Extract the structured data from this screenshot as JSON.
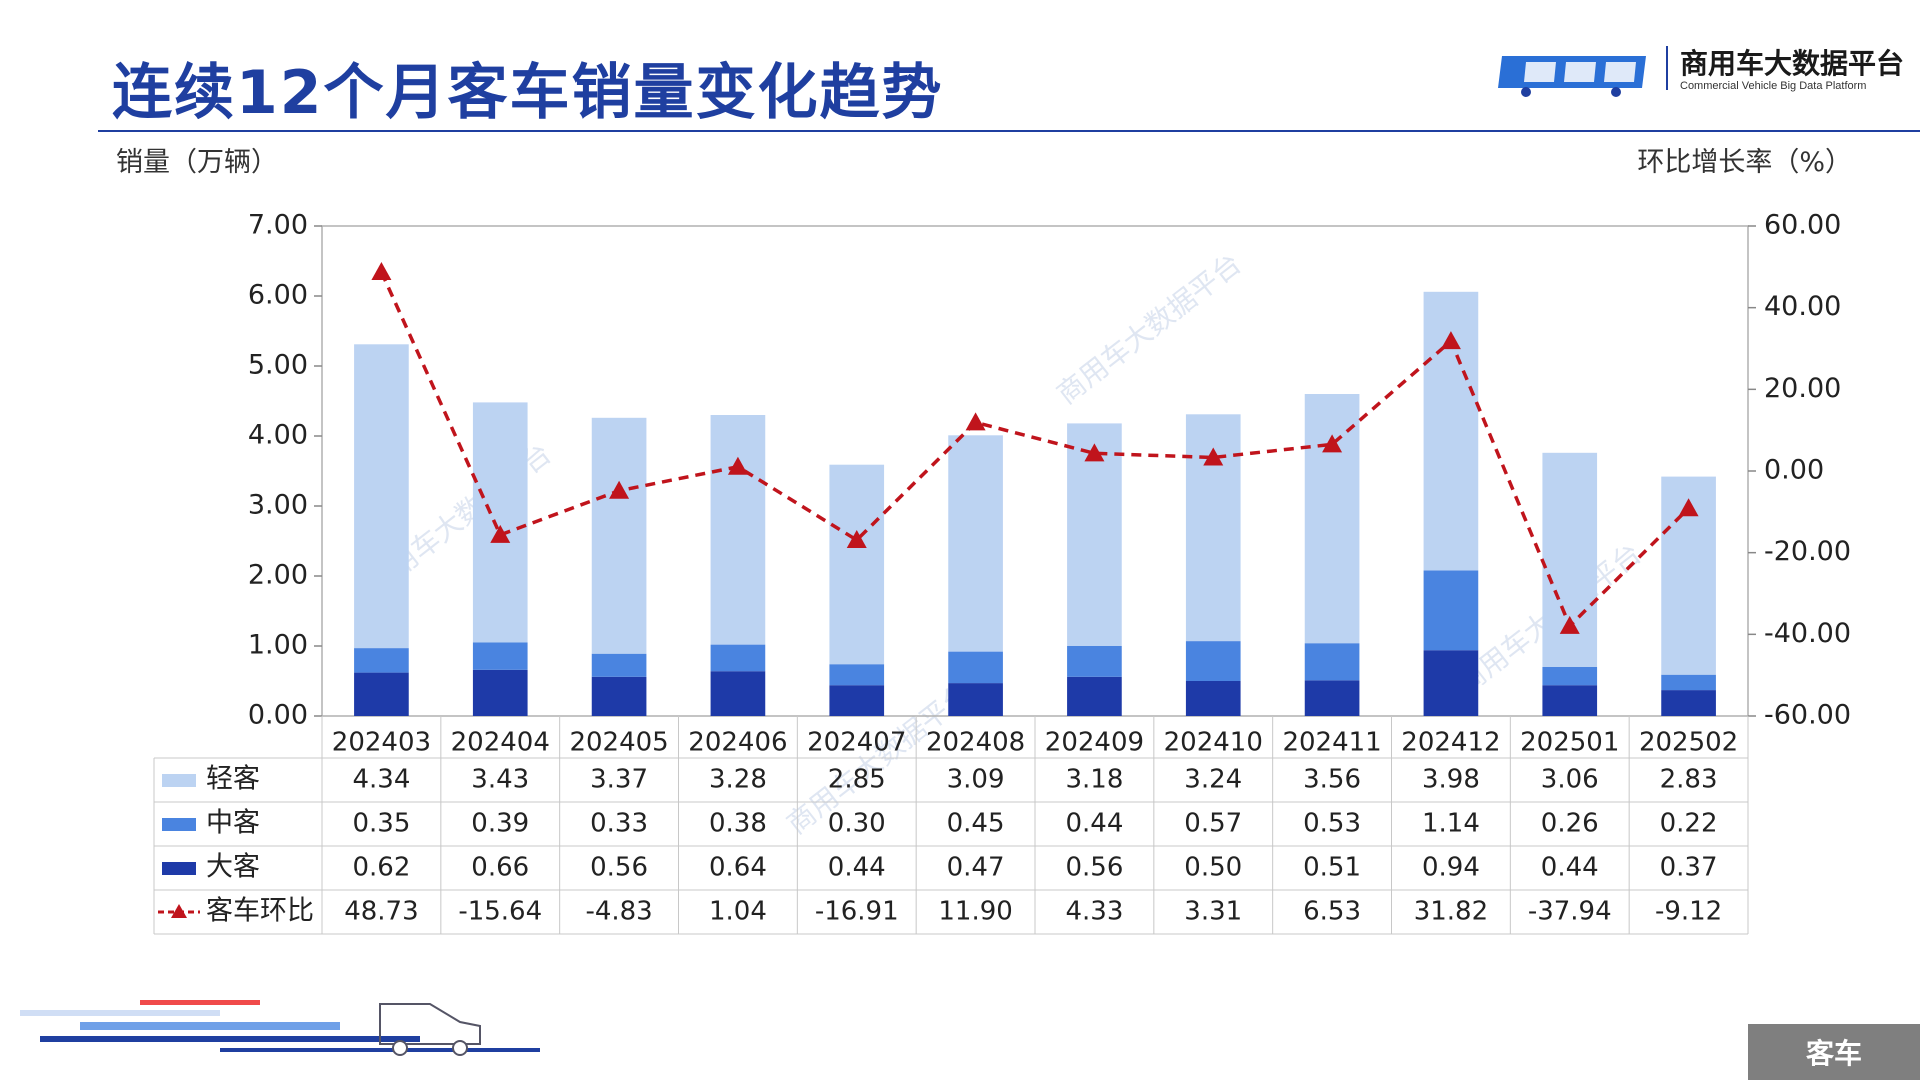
{
  "page": {
    "title": "连续12个月客车销量变化趋势",
    "badge": "客车",
    "logo_cn": "商用车大数据平台",
    "logo_en": "Commercial Vehicle Big Data Platform",
    "watermark_text": "商用车大数据平台"
  },
  "chart_data": {
    "type": "bar",
    "stacked": true,
    "categories": [
      "202403",
      "202404",
      "202405",
      "202406",
      "202407",
      "202408",
      "202409",
      "202410",
      "202411",
      "202412",
      "202501",
      "202502"
    ],
    "ylabel": "销量（万辆）",
    "y2label": "环比增长率（%）",
    "ylim": [
      0,
      7
    ],
    "y2lim": [
      -60,
      60
    ],
    "yticks": [
      "0.00",
      "1.00",
      "2.00",
      "3.00",
      "4.00",
      "5.00",
      "6.00",
      "7.00"
    ],
    "y2ticks": [
      "-60.00",
      "-40.00",
      "-20.00",
      "0.00",
      "20.00",
      "40.00",
      "60.00"
    ],
    "series": [
      {
        "name": "大客",
        "type": "bar",
        "color": "#1e3aa8",
        "values": [
          0.62,
          0.66,
          0.56,
          0.64,
          0.44,
          0.47,
          0.56,
          0.5,
          0.51,
          0.94,
          0.44,
          0.37
        ],
        "labels": [
          "0.62",
          "0.66",
          "0.56",
          "0.64",
          "0.44",
          "0.47",
          "0.56",
          "0.50",
          "0.51",
          "0.94",
          "0.44",
          "0.37"
        ]
      },
      {
        "name": "中客",
        "type": "bar",
        "color": "#4a84e0",
        "values": [
          0.35,
          0.39,
          0.33,
          0.38,
          0.3,
          0.45,
          0.44,
          0.57,
          0.53,
          1.14,
          0.26,
          0.22
        ],
        "labels": [
          "0.35",
          "0.39",
          "0.33",
          "0.38",
          "0.30",
          "0.45",
          "0.44",
          "0.57",
          "0.53",
          "1.14",
          "0.26",
          "0.22"
        ]
      },
      {
        "name": "轻客",
        "type": "bar",
        "color": "#bcd3f2",
        "values": [
          4.34,
          3.43,
          3.37,
          3.28,
          2.85,
          3.09,
          3.18,
          3.24,
          3.56,
          3.98,
          3.06,
          2.83
        ],
        "labels": [
          "4.34",
          "3.43",
          "3.37",
          "3.28",
          "2.85",
          "3.09",
          "3.18",
          "3.24",
          "3.56",
          "3.98",
          "3.06",
          "2.83"
        ]
      },
      {
        "name": "客车环比",
        "type": "line",
        "axis": "right",
        "color": "#c0141c",
        "values": [
          48.73,
          -15.64,
          -4.83,
          1.04,
          -16.91,
          11.9,
          4.33,
          3.31,
          6.53,
          31.82,
          -37.94,
          -9.12
        ],
        "labels": [
          "48.73",
          "-15.64",
          "-4.83",
          "1.04",
          "-16.91",
          "11.90",
          "4.33",
          "3.31",
          "6.53",
          "31.82",
          "-37.94",
          "-9.12"
        ]
      }
    ],
    "table_row_order": [
      "轻客",
      "中客",
      "大客",
      "客车环比"
    ],
    "grid": false,
    "legend": "data-table"
  }
}
